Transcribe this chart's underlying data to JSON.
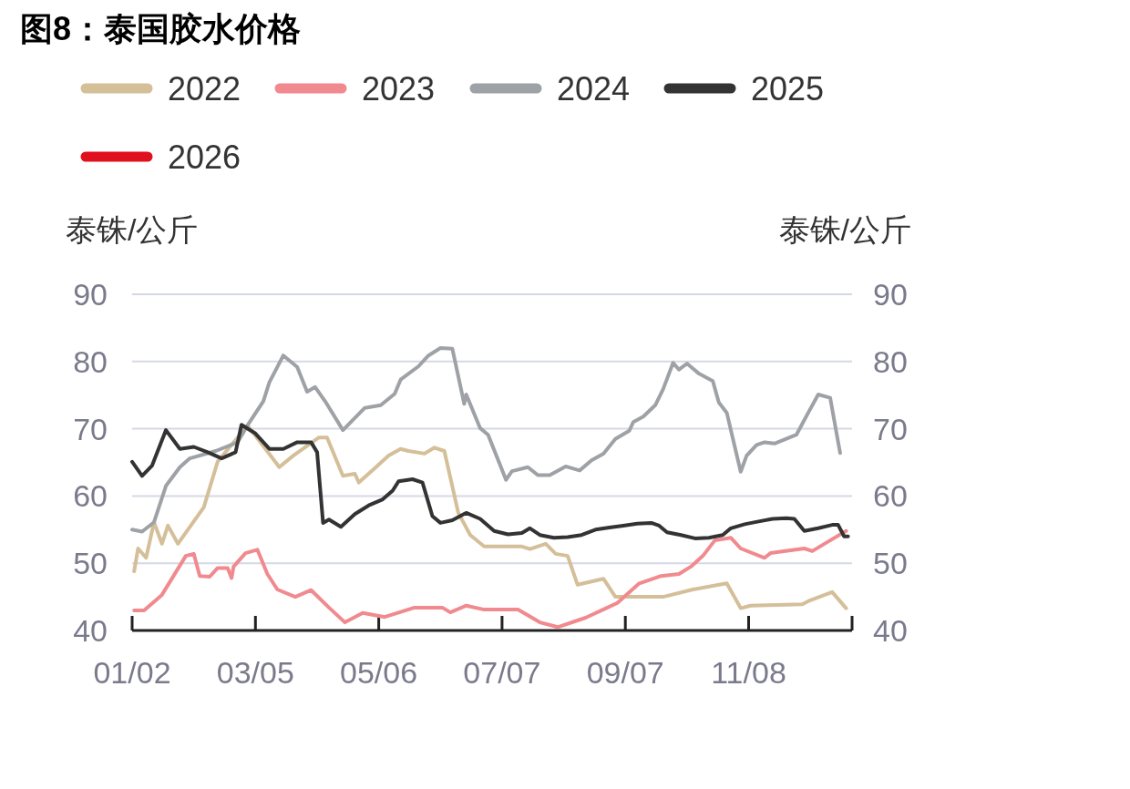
{
  "chart_data": {
    "type": "line",
    "title": "图8：泰国胶水价格",
    "ylabel": "泰铢/公斤",
    "y2label": "泰铢/公斤",
    "xlim": [
      "--01-02",
      "--12-30"
    ],
    "xticks": [
      {
        "value": "--01-02",
        "label": "01/02"
      },
      {
        "value": "--03-05",
        "label": "03/05"
      },
      {
        "value": "--05-06",
        "label": "05/06"
      },
      {
        "value": "--07-07",
        "label": "07/07"
      },
      {
        "value": "--09-07",
        "label": "09/07"
      },
      {
        "value": "--11-08",
        "label": "11/08"
      },
      {
        "value": "--12-30",
        "label": null
      }
    ],
    "ylim": [
      40,
      90
    ],
    "yticks": [
      40,
      50,
      60,
      70,
      80,
      90
    ],
    "y2lim": [
      40,
      90
    ],
    "y2ticks": [
      40,
      50,
      60,
      70,
      80,
      90
    ],
    "grid": "y",
    "legend": "top",
    "series": [
      {
        "name": "2022",
        "color": "#d4bf99",
        "x": [
          "--01-03",
          "--01-05",
          "--01-09",
          "--01-13",
          "--01-17",
          "--01-20",
          "--01-25",
          "--02-07",
          "--02-14",
          "--02-24",
          "--03-01",
          "--03-17",
          "--03-24",
          "--04-06",
          "--04-10",
          "--04-18",
          "--04-24",
          "--04-26",
          "--05-05",
          "--05-11",
          "--05-17",
          "--05-21",
          "--05-29",
          "--06-03",
          "--06-08",
          "--06-15",
          "--06-21",
          "--06-28",
          "--07-17",
          "--07-21",
          "--07-29",
          "--08-03",
          "--08-09",
          "--08-14",
          "--08-27",
          "--09-02",
          "--09-26",
          "--10-11",
          "--10-28",
          "--11-04",
          "--11-09",
          "--12-05",
          "--12-09",
          "--12-20",
          "--12-27"
        ],
        "values": [
          48.8,
          52.2,
          50.8,
          56.1,
          52.9,
          55.6,
          52.9,
          58.3,
          65.1,
          68.7,
          70.5,
          64.3,
          66.0,
          68.7,
          68.7,
          63.0,
          63.3,
          62.0,
          64.4,
          66.0,
          67.0,
          66.7,
          66.3,
          67.2,
          66.7,
          57.5,
          54.2,
          52.5,
          52.5,
          52.1,
          52.9,
          51.4,
          51.1,
          46.8,
          47.7,
          45.0,
          45.0,
          46.1,
          47.0,
          43.3,
          43.7,
          43.9,
          44.5,
          45.7,
          43.3
        ]
      },
      {
        "name": "2023",
        "color": "#f08a8f",
        "x": [
          "--01-03",
          "--01-08",
          "--01-17",
          "--01-29",
          "--02-02",
          "--02-05",
          "--02-10",
          "--02-14",
          "--02-19",
          "--02-21",
          "--02-22",
          "--02-28",
          "--03-06",
          "--03-11",
          "--03-16",
          "--03-25",
          "--04-02",
          "--04-11",
          "--04-19",
          "--04-28",
          "--05-09",
          "--05-24",
          "--06-07",
          "--06-11",
          "--06-19",
          "--06-28",
          "--07-15",
          "--07-26",
          "--08-04",
          "--08-18",
          "--08-29",
          "--09-03",
          "--09-14",
          "--09-25",
          "--10-04",
          "--10-10",
          "--10-16",
          "--10-22",
          "--10-30",
          "--11-04",
          "--11-16",
          "--11-19",
          "--12-06",
          "--12-10",
          "--12-19",
          "--12-27"
        ],
        "values": [
          43.0,
          43.0,
          45.3,
          51.1,
          51.4,
          48.1,
          48.0,
          49.3,
          49.3,
          47.8,
          49.5,
          51.5,
          52.0,
          48.4,
          46.1,
          45.0,
          46.0,
          43.4,
          41.2,
          42.6,
          42.0,
          43.4,
          43.4,
          42.7,
          43.7,
          43.1,
          43.1,
          41.2,
          40.5,
          41.9,
          43.4,
          44.1,
          47.0,
          48.1,
          48.4,
          49.5,
          51.1,
          53.4,
          53.8,
          52.2,
          50.8,
          51.5,
          52.2,
          51.8,
          53.4,
          54.8
        ]
      },
      {
        "name": "2024",
        "color": "#9ea2a6",
        "x": [
          "--01-02",
          "--01-07",
          "--01-13",
          "--01-19",
          "--01-26",
          "--01-31",
          "--02-13",
          "--02-24",
          "--03-01",
          "--03-09",
          "--03-12",
          "--03-19",
          "--03-26",
          "--03-31",
          "--04-04",
          "--04-09",
          "--04-18",
          "--04-29",
          "--05-07",
          "--05-14",
          "--05-17",
          "--05-26",
          "--05-31",
          "--06-06",
          "--06-12",
          "--06-18",
          "--06-19",
          "--06-26",
          "--06-30",
          "--07-09",
          "--07-12",
          "--07-20",
          "--07-25",
          "--07-31",
          "--08-08",
          "--08-15",
          "--08-21",
          "--08-27",
          "--09-02",
          "--09-09",
          "--09-11",
          "--09-16",
          "--09-22",
          "--09-26",
          "--10-01",
          "--10-04",
          "--10-08",
          "--10-14",
          "--10-21",
          "--10-24",
          "--10-28",
          "--11-04",
          "--11-07",
          "--11-12",
          "--11-16",
          "--11-21",
          "--12-02",
          "--12-08",
          "--12-13",
          "--12-19",
          "--12-22",
          "--12-24"
        ],
        "values": [
          55.0,
          54.7,
          56.1,
          61.5,
          64.3,
          65.6,
          66.7,
          68.0,
          70.5,
          74.1,
          76.9,
          80.9,
          79.2,
          75.5,
          76.2,
          74.1,
          69.8,
          73.1,
          73.5,
          75.2,
          77.3,
          79.3,
          80.9,
          82.0,
          81.9,
          73.7,
          75.1,
          70.1,
          69.1,
          62.4,
          63.7,
          64.3,
          63.1,
          63.1,
          64.4,
          63.8,
          65.3,
          66.3,
          68.5,
          69.7,
          71.0,
          71.8,
          73.5,
          75.9,
          79.8,
          78.8,
          79.7,
          78.2,
          77.1,
          73.9,
          72.4,
          63.6,
          66.0,
          67.6,
          68.0,
          67.8,
          69.1,
          72.4,
          75.1,
          74.6,
          69.7,
          66.4
        ]
      },
      {
        "name": "2025",
        "color": "#333333",
        "x": [
          "--01-02",
          "--01-07",
          "--01-12",
          "--01-19",
          "--01-26",
          "--02-02",
          "--02-09",
          "--02-16",
          "--02-23",
          "--02-26",
          "--03-05",
          "--03-12",
          "--03-19",
          "--03-26",
          "--04-02",
          "--04-05",
          "--04-08",
          "--04-11",
          "--04-17",
          "--04-24",
          "--05-01",
          "--05-08",
          "--05-13",
          "--05-16",
          "--05-23",
          "--05-28",
          "--06-02",
          "--06-06",
          "--06-12",
          "--06-19",
          "--06-26",
          "--07-03",
          "--07-10",
          "--07-17",
          "--07-21",
          "--07-26",
          "--08-02",
          "--08-09",
          "--08-16",
          "--08-23",
          "--08-30",
          "--09-06",
          "--09-13",
          "--09-20",
          "--09-24",
          "--09-28",
          "--10-05",
          "--10-12",
          "--10-19",
          "--10-26",
          "--10-30",
          "--11-06",
          "--11-13",
          "--11-20",
          "--11-27",
          "--12-01",
          "--12-06",
          "--12-13",
          "--12-20",
          "--12-23",
          "--12-26",
          "--12-28"
        ],
        "values": [
          65.1,
          63.0,
          64.5,
          69.8,
          67.0,
          67.3,
          66.5,
          65.6,
          66.5,
          70.6,
          69.3,
          67.0,
          67.0,
          68.0,
          68.0,
          66.5,
          56.0,
          56.5,
          55.4,
          57.3,
          58.6,
          59.5,
          60.8,
          62.2,
          62.5,
          62.0,
          57.0,
          56.0,
          56.4,
          57.5,
          56.6,
          54.8,
          54.3,
          54.5,
          55.2,
          54.2,
          53.8,
          53.9,
          54.2,
          55.0,
          55.3,
          55.6,
          55.9,
          56.0,
          55.6,
          54.6,
          54.2,
          53.7,
          53.8,
          54.2,
          55.2,
          55.8,
          56.2,
          56.6,
          56.7,
          56.6,
          54.8,
          55.2,
          55.7,
          55.7,
          54.0,
          54.0
        ]
      },
      {
        "name": "2026",
        "color": "#e0101e"
      }
    ]
  }
}
